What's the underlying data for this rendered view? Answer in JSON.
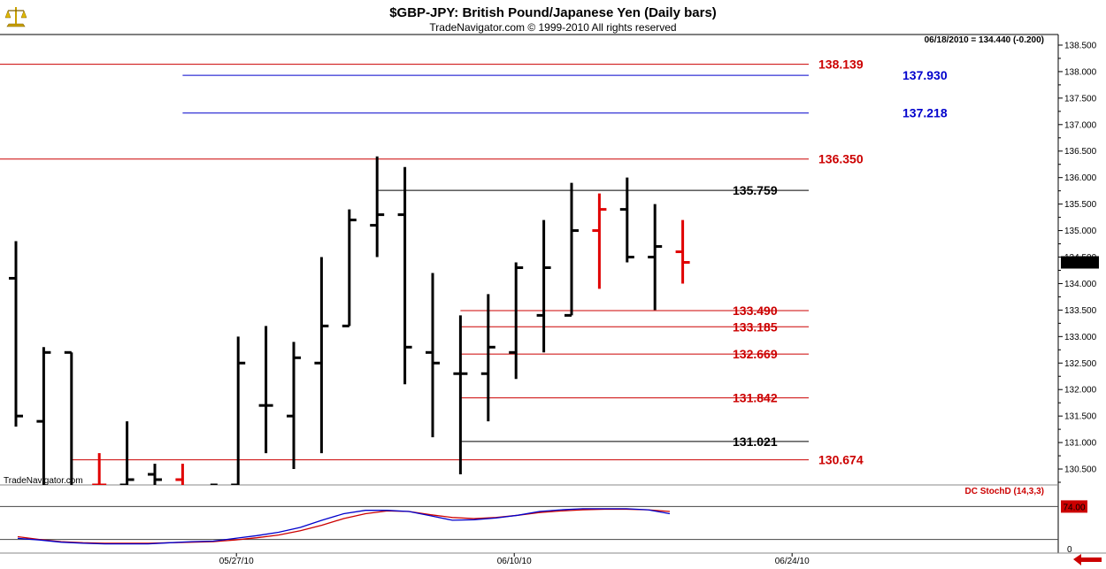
{
  "header": {
    "title": "$GBP-JPY:  British Pound/Japanese Yen  (Daily bars)",
    "copyright": "TradeNavigator.com © 1999-2010 All rights reserved",
    "quote_readout": "06/18/2010 = 134.440 (-0.200)",
    "watermark": "TradeNavigator.com"
  },
  "colors": {
    "up_bar": "#000000",
    "down_bar": "#e00000",
    "red_level": "#cc0000",
    "blue_level": "#0000cc",
    "black_level": "#000000",
    "stoch_k": "#0000cc",
    "stoch_d": "#cc0000",
    "price_badge_bg": "#000000",
    "stoch_badge_bg": "#cc0000"
  },
  "chart_data": {
    "type": "bar",
    "style": "OHLC daily bars",
    "ylim": [
      130.2,
      138.7
    ],
    "y_ticks": [
      "130.500",
      "131.000",
      "131.500",
      "132.000",
      "132.500",
      "133.000",
      "133.500",
      "134.000",
      "134.500",
      "135.000",
      "135.500",
      "136.000",
      "136.500",
      "137.000",
      "137.500",
      "138.000",
      "138.500"
    ],
    "x_tick_labels": [
      {
        "label": "05/27/10",
        "bar_index": 8
      },
      {
        "label": "06/10/10",
        "bar_index": 18
      },
      {
        "label": "06/24/10",
        "bar_index": 28
      }
    ],
    "last_price_label": "134.440",
    "bars": [
      {
        "o": 134.1,
        "h": 134.8,
        "l": 131.3,
        "c": 131.5,
        "color": "black"
      },
      {
        "o": 131.4,
        "h": 132.8,
        "l": 129.5,
        "c": 132.7,
        "color": "black"
      },
      {
        "o": 132.7,
        "h": 132.7,
        "l": 129.6,
        "c": 129.7,
        "color": "black"
      },
      {
        "o": 130.2,
        "h": 130.8,
        "l": 129.8,
        "c": 130.2,
        "color": "red"
      },
      {
        "o": 130.2,
        "h": 131.4,
        "l": 129.7,
        "c": 130.3,
        "color": "black"
      },
      {
        "o": 130.4,
        "h": 130.6,
        "l": 129.9,
        "c": 130.3,
        "color": "black"
      },
      {
        "o": 130.3,
        "h": 130.6,
        "l": 129.8,
        "c": 130.1,
        "color": "red"
      },
      {
        "o": 130.1,
        "h": 130.2,
        "l": 129.8,
        "c": 130.2,
        "color": "black"
      },
      {
        "o": 130.2,
        "h": 133.0,
        "l": 130.2,
        "c": 132.5,
        "color": "black"
      },
      {
        "o": 131.7,
        "h": 133.2,
        "l": 130.8,
        "c": 131.7,
        "color": "black"
      },
      {
        "o": 131.5,
        "h": 132.9,
        "l": 130.5,
        "c": 132.6,
        "color": "black"
      },
      {
        "o": 132.5,
        "h": 134.5,
        "l": 130.8,
        "c": 133.2,
        "color": "black"
      },
      {
        "o": 133.2,
        "h": 135.4,
        "l": 133.2,
        "c": 135.2,
        "color": "black"
      },
      {
        "o": 135.1,
        "h": 136.4,
        "l": 134.5,
        "c": 135.3,
        "color": "black"
      },
      {
        "o": 135.3,
        "h": 136.2,
        "l": 132.1,
        "c": 132.8,
        "color": "black"
      },
      {
        "o": 132.7,
        "h": 134.2,
        "l": 131.1,
        "c": 132.5,
        "color": "black"
      },
      {
        "o": 132.3,
        "h": 133.4,
        "l": 130.4,
        "c": 132.3,
        "color": "black"
      },
      {
        "o": 132.3,
        "h": 133.8,
        "l": 131.4,
        "c": 132.8,
        "color": "black"
      },
      {
        "o": 132.7,
        "h": 134.4,
        "l": 132.2,
        "c": 134.3,
        "color": "black"
      },
      {
        "o": 133.4,
        "h": 135.2,
        "l": 132.7,
        "c": 134.3,
        "color": "black"
      },
      {
        "o": 133.4,
        "h": 135.9,
        "l": 133.4,
        "c": 135.0,
        "color": "black"
      },
      {
        "o": 135.0,
        "h": 135.7,
        "l": 133.9,
        "c": 135.4,
        "color": "red"
      },
      {
        "o": 135.4,
        "h": 136.0,
        "l": 134.4,
        "c": 134.5,
        "color": "black"
      },
      {
        "o": 134.5,
        "h": 135.5,
        "l": 133.5,
        "c": 134.7,
        "color": "black"
      },
      {
        "o": 134.6,
        "h": 135.2,
        "l": 134.0,
        "c": 134.4,
        "color": "red"
      }
    ],
    "levels": [
      {
        "label": "138.139",
        "value": 138.139,
        "color": "red",
        "start_bar": -1
      },
      {
        "label": "137.930",
        "value": 137.93,
        "color": "blue",
        "start_bar": 6
      },
      {
        "label": "137.218",
        "value": 137.218,
        "color": "blue",
        "start_bar": 6
      },
      {
        "label": "136.350",
        "value": 136.35,
        "color": "red",
        "start_bar": -1
      },
      {
        "label": "135.759",
        "value": 135.759,
        "color": "black",
        "start_bar": 13
      },
      {
        "label": "133.490",
        "value": 133.49,
        "color": "red",
        "start_bar": 16
      },
      {
        "label": "133.185",
        "value": 133.185,
        "color": "red",
        "start_bar": 16
      },
      {
        "label": "132.669",
        "value": 132.669,
        "color": "red",
        "start_bar": 16
      },
      {
        "label": "131.842",
        "value": 131.842,
        "color": "red",
        "start_bar": 16
      },
      {
        "label": "131.021",
        "value": 131.021,
        "color": "black",
        "start_bar": 16
      },
      {
        "label": "130.674",
        "value": 130.674,
        "color": "red",
        "start_bar": 2
      }
    ],
    "indicator": {
      "name": "DC StochD (14,3,3)",
      "ylim": [
        0,
        100
      ],
      "ref_lines": [
        80,
        20
      ],
      "zero_label": "0",
      "last_value_label": "74.00",
      "k_values": [
        22,
        19,
        15,
        13,
        12,
        12,
        12,
        14,
        16,
        17,
        22,
        27,
        33,
        42,
        55,
        67,
        73,
        73,
        71,
        63,
        55,
        56,
        59,
        64,
        71,
        74,
        76,
        76,
        76,
        74,
        67
      ],
      "d_values": [
        25,
        20,
        16,
        14,
        13,
        13,
        13,
        14,
        15,
        16,
        19,
        23,
        28,
        36,
        46,
        58,
        67,
        72,
        71,
        65,
        60,
        58,
        60,
        64,
        69,
        72,
        74,
        75,
        75,
        74,
        71
      ]
    }
  }
}
